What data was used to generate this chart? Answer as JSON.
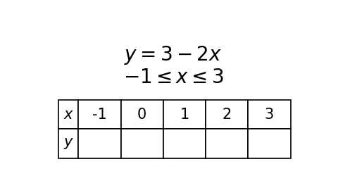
{
  "equation_line1": "$y = 3 - 2x$",
  "equation_line2": "$\\mathdefault{-1} \\leq x \\leq 3$",
  "x_label": "$\\bfit{x}$",
  "y_label": "$\\bfit{y}$",
  "x_values": [
    "-1",
    "0",
    "1",
    "2",
    "3"
  ],
  "bg_color": "#ffffff",
  "text_color": "#000000",
  "eq_fontsize": 20,
  "table_fontsize": 15,
  "table_label_fontsize": 15
}
